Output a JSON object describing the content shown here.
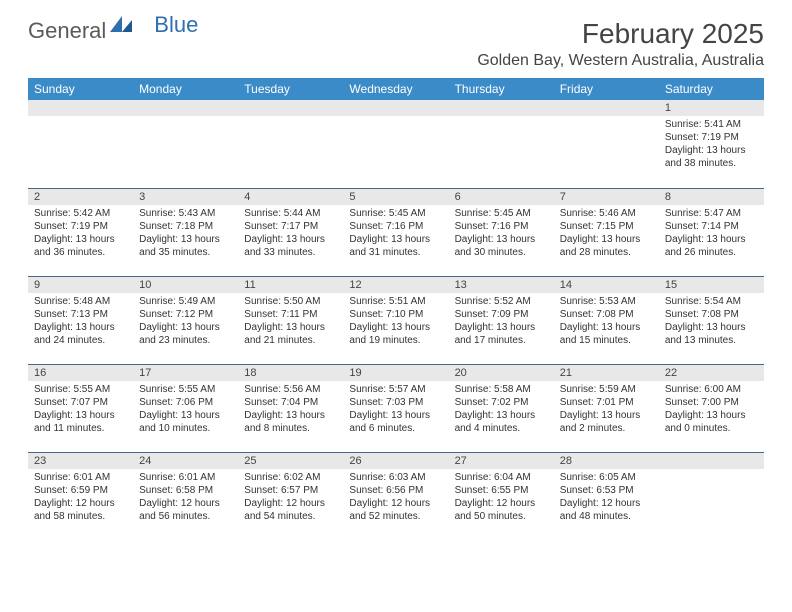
{
  "logo": {
    "text1": "General",
    "text2": "Blue"
  },
  "title": "February 2025",
  "location": "Golden Bay, Western Australia, Australia",
  "colors": {
    "header_bg": "#3b8bc8",
    "header_text": "#ffffff",
    "daynum_bg": "#e8e8e8",
    "row_divider": "#4a6a8a",
    "text": "#333333",
    "logo_gray": "#5a5a5a",
    "logo_blue": "#2f6fb0"
  },
  "day_headers": [
    "Sunday",
    "Monday",
    "Tuesday",
    "Wednesday",
    "Thursday",
    "Friday",
    "Saturday"
  ],
  "weeks": [
    [
      null,
      null,
      null,
      null,
      null,
      null,
      {
        "n": "1",
        "sunrise": "5:41 AM",
        "sunset": "7:19 PM",
        "dl1": "13 hours",
        "dl2": "and 38 minutes."
      }
    ],
    [
      {
        "n": "2",
        "sunrise": "5:42 AM",
        "sunset": "7:19 PM",
        "dl1": "13 hours",
        "dl2": "and 36 minutes."
      },
      {
        "n": "3",
        "sunrise": "5:43 AM",
        "sunset": "7:18 PM",
        "dl1": "13 hours",
        "dl2": "and 35 minutes."
      },
      {
        "n": "4",
        "sunrise": "5:44 AM",
        "sunset": "7:17 PM",
        "dl1": "13 hours",
        "dl2": "and 33 minutes."
      },
      {
        "n": "5",
        "sunrise": "5:45 AM",
        "sunset": "7:16 PM",
        "dl1": "13 hours",
        "dl2": "and 31 minutes."
      },
      {
        "n": "6",
        "sunrise": "5:45 AM",
        "sunset": "7:16 PM",
        "dl1": "13 hours",
        "dl2": "and 30 minutes."
      },
      {
        "n": "7",
        "sunrise": "5:46 AM",
        "sunset": "7:15 PM",
        "dl1": "13 hours",
        "dl2": "and 28 minutes."
      },
      {
        "n": "8",
        "sunrise": "5:47 AM",
        "sunset": "7:14 PM",
        "dl1": "13 hours",
        "dl2": "and 26 minutes."
      }
    ],
    [
      {
        "n": "9",
        "sunrise": "5:48 AM",
        "sunset": "7:13 PM",
        "dl1": "13 hours",
        "dl2": "and 24 minutes."
      },
      {
        "n": "10",
        "sunrise": "5:49 AM",
        "sunset": "7:12 PM",
        "dl1": "13 hours",
        "dl2": "and 23 minutes."
      },
      {
        "n": "11",
        "sunrise": "5:50 AM",
        "sunset": "7:11 PM",
        "dl1": "13 hours",
        "dl2": "and 21 minutes."
      },
      {
        "n": "12",
        "sunrise": "5:51 AM",
        "sunset": "7:10 PM",
        "dl1": "13 hours",
        "dl2": "and 19 minutes."
      },
      {
        "n": "13",
        "sunrise": "5:52 AM",
        "sunset": "7:09 PM",
        "dl1": "13 hours",
        "dl2": "and 17 minutes."
      },
      {
        "n": "14",
        "sunrise": "5:53 AM",
        "sunset": "7:08 PM",
        "dl1": "13 hours",
        "dl2": "and 15 minutes."
      },
      {
        "n": "15",
        "sunrise": "5:54 AM",
        "sunset": "7:08 PM",
        "dl1": "13 hours",
        "dl2": "and 13 minutes."
      }
    ],
    [
      {
        "n": "16",
        "sunrise": "5:55 AM",
        "sunset": "7:07 PM",
        "dl1": "13 hours",
        "dl2": "and 11 minutes."
      },
      {
        "n": "17",
        "sunrise": "5:55 AM",
        "sunset": "7:06 PM",
        "dl1": "13 hours",
        "dl2": "and 10 minutes."
      },
      {
        "n": "18",
        "sunrise": "5:56 AM",
        "sunset": "7:04 PM",
        "dl1": "13 hours",
        "dl2": "and 8 minutes."
      },
      {
        "n": "19",
        "sunrise": "5:57 AM",
        "sunset": "7:03 PM",
        "dl1": "13 hours",
        "dl2": "and 6 minutes."
      },
      {
        "n": "20",
        "sunrise": "5:58 AM",
        "sunset": "7:02 PM",
        "dl1": "13 hours",
        "dl2": "and 4 minutes."
      },
      {
        "n": "21",
        "sunrise": "5:59 AM",
        "sunset": "7:01 PM",
        "dl1": "13 hours",
        "dl2": "and 2 minutes."
      },
      {
        "n": "22",
        "sunrise": "6:00 AM",
        "sunset": "7:00 PM",
        "dl1": "13 hours",
        "dl2": "and 0 minutes."
      }
    ],
    [
      {
        "n": "23",
        "sunrise": "6:01 AM",
        "sunset": "6:59 PM",
        "dl1": "12 hours",
        "dl2": "and 58 minutes."
      },
      {
        "n": "24",
        "sunrise": "6:01 AM",
        "sunset": "6:58 PM",
        "dl1": "12 hours",
        "dl2": "and 56 minutes."
      },
      {
        "n": "25",
        "sunrise": "6:02 AM",
        "sunset": "6:57 PM",
        "dl1": "12 hours",
        "dl2": "and 54 minutes."
      },
      {
        "n": "26",
        "sunrise": "6:03 AM",
        "sunset": "6:56 PM",
        "dl1": "12 hours",
        "dl2": "and 52 minutes."
      },
      {
        "n": "27",
        "sunrise": "6:04 AM",
        "sunset": "6:55 PM",
        "dl1": "12 hours",
        "dl2": "and 50 minutes."
      },
      {
        "n": "28",
        "sunrise": "6:05 AM",
        "sunset": "6:53 PM",
        "dl1": "12 hours",
        "dl2": "and 48 minutes."
      },
      null
    ]
  ],
  "labels": {
    "sunrise": "Sunrise: ",
    "sunset": "Sunset: ",
    "daylight": "Daylight: "
  }
}
